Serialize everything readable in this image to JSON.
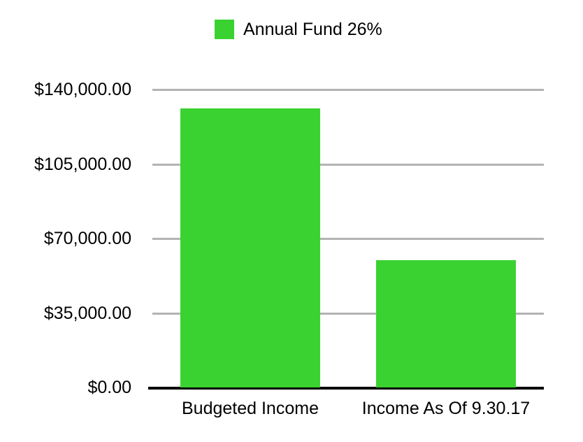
{
  "colors": {
    "background": "#ffffff",
    "bar": "#3ad231",
    "gridline": "#b3b3b3",
    "axis_line": "#000000",
    "text": "#000000"
  },
  "chart_data": {
    "type": "bar",
    "title": "",
    "categories": [
      "Budgeted Income",
      "Income As Of 9.30.17"
    ],
    "series": [
      {
        "name": "Annual Fund 26%",
        "values": [
          131000,
          59800
        ]
      }
    ],
    "xlabel": "",
    "ylabel": "",
    "ylim": [
      0,
      140000
    ],
    "y_ticks": [
      0,
      35000,
      70000,
      105000,
      140000
    ],
    "y_tick_labels": [
      "$0.00",
      "$35,000.00",
      "$70,000.00",
      "$105,000.00",
      "$140,000.00"
    ],
    "grid": true,
    "legend_position": "top",
    "legend": [
      {
        "label": "Annual Fund 26%"
      }
    ]
  }
}
